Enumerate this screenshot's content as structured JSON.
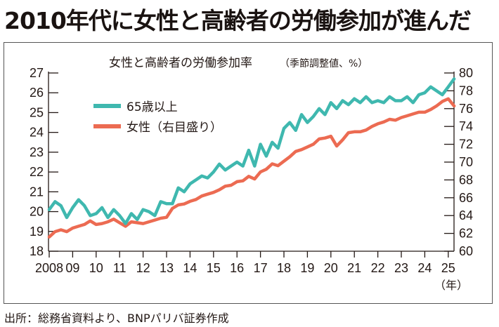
{
  "headline": "2010年代に女性と高齢者の労働参加が進んだ",
  "source": "出所：総務省資料より、BNPパリバ証券作成",
  "colors": {
    "elderly": "#3fb8af",
    "women": "#ec6b52",
    "axis": "#231815"
  },
  "chart_data": {
    "type": "line",
    "title": "女性と高齢者の労働参加率",
    "title_sub": "（季節調整値、%）",
    "xlabel": "（年）",
    "x_ticks": [
      "2008",
      "09",
      "10",
      "11",
      "12",
      "13",
      "14",
      "15",
      "16",
      "17",
      "18",
      "19",
      "20",
      "21",
      "22",
      "23",
      "24",
      "25"
    ],
    "x_range": [
      2008,
      2025.4
    ],
    "y_left": {
      "range": [
        18,
        27
      ],
      "ticks": [
        18,
        19,
        20,
        21,
        22,
        23,
        24,
        25,
        26,
        27
      ]
    },
    "y_right": {
      "range": [
        60,
        80
      ],
      "ticks": [
        60,
        62,
        64,
        66,
        68,
        70,
        72,
        74,
        76,
        78,
        80
      ]
    },
    "grid": false,
    "legend_position": "top-left",
    "series": [
      {
        "name": "65歳以上",
        "axis": "left",
        "color": "#3fb8af",
        "x": [
          2008.0,
          2008.25,
          2008.5,
          2008.75,
          2009.0,
          2009.25,
          2009.5,
          2009.75,
          2010.0,
          2010.25,
          2010.5,
          2010.75,
          2011.0,
          2011.25,
          2011.5,
          2011.75,
          2012.0,
          2012.25,
          2012.5,
          2012.75,
          2013.0,
          2013.25,
          2013.5,
          2013.75,
          2014.0,
          2014.25,
          2014.5,
          2014.75,
          2015.0,
          2015.25,
          2015.5,
          2015.75,
          2016.0,
          2016.25,
          2016.5,
          2016.75,
          2017.0,
          2017.25,
          2017.5,
          2017.75,
          2018.0,
          2018.25,
          2018.5,
          2018.75,
          2019.0,
          2019.25,
          2019.5,
          2019.75,
          2020.0,
          2020.25,
          2020.5,
          2020.75,
          2021.0,
          2021.25,
          2021.5,
          2021.75,
          2022.0,
          2022.25,
          2022.5,
          2022.75,
          2023.0,
          2023.25,
          2023.5,
          2023.75,
          2024.0,
          2024.25,
          2024.5,
          2024.75,
          2025.0,
          2025.25
        ],
        "values": [
          20.1,
          20.5,
          20.3,
          19.7,
          20.2,
          20.6,
          20.3,
          19.8,
          19.9,
          20.2,
          19.7,
          20.1,
          19.8,
          19.4,
          19.9,
          19.6,
          20.1,
          20.0,
          19.8,
          20.5,
          20.4,
          20.4,
          21.2,
          21.0,
          21.4,
          21.6,
          21.8,
          21.7,
          22.0,
          22.4,
          22.1,
          22.3,
          22.5,
          22.3,
          23.1,
          22.3,
          23.4,
          22.8,
          23.5,
          23.2,
          24.2,
          24.5,
          24.1,
          24.9,
          24.5,
          24.8,
          25.2,
          24.9,
          25.5,
          25.2,
          25.6,
          25.4,
          25.7,
          25.5,
          25.8,
          25.5,
          25.6,
          25.5,
          25.8,
          25.6,
          25.6,
          25.8,
          25.5,
          25.9,
          26.0,
          26.3,
          26.1,
          25.9,
          26.3,
          26.7
        ]
      },
      {
        "name": "女性（右目盛り）",
        "axis": "right",
        "color": "#ec6b52",
        "x": [
          2008.0,
          2008.25,
          2008.5,
          2008.75,
          2009.0,
          2009.25,
          2009.5,
          2009.75,
          2010.0,
          2010.25,
          2010.5,
          2010.75,
          2011.0,
          2011.25,
          2011.5,
          2011.75,
          2012.0,
          2012.25,
          2012.5,
          2012.75,
          2013.0,
          2013.25,
          2013.5,
          2013.75,
          2014.0,
          2014.25,
          2014.5,
          2014.75,
          2015.0,
          2015.25,
          2015.5,
          2015.75,
          2016.0,
          2016.25,
          2016.5,
          2016.75,
          2017.0,
          2017.25,
          2017.5,
          2017.75,
          2018.0,
          2018.25,
          2018.5,
          2018.75,
          2019.0,
          2019.25,
          2019.5,
          2019.75,
          2020.0,
          2020.25,
          2020.5,
          2020.75,
          2021.0,
          2021.25,
          2021.5,
          2021.75,
          2022.0,
          2022.25,
          2022.5,
          2022.75,
          2023.0,
          2023.25,
          2023.5,
          2023.75,
          2024.0,
          2024.25,
          2024.5,
          2024.75,
          2025.0,
          2025.25
        ],
        "values": [
          61.6,
          62.2,
          62.4,
          62.2,
          62.6,
          62.8,
          63.0,
          63.4,
          63.0,
          63.1,
          63.3,
          63.6,
          63.2,
          62.8,
          63.3,
          63.2,
          63.1,
          63.3,
          63.5,
          63.7,
          63.8,
          64.8,
          65.2,
          65.3,
          65.6,
          65.8,
          66.2,
          66.4,
          66.6,
          66.9,
          67.3,
          67.4,
          67.8,
          67.9,
          68.4,
          68.1,
          68.9,
          69.2,
          69.8,
          69.6,
          70.1,
          70.6,
          71.2,
          71.4,
          71.7,
          72.0,
          72.6,
          72.7,
          72.9,
          71.8,
          72.5,
          73.3,
          73.4,
          73.4,
          73.6,
          74.0,
          74.3,
          74.5,
          74.8,
          74.7,
          75.0,
          75.2,
          75.4,
          75.6,
          75.6,
          75.9,
          76.3,
          76.8,
          77.1,
          76.3
        ]
      }
    ]
  }
}
